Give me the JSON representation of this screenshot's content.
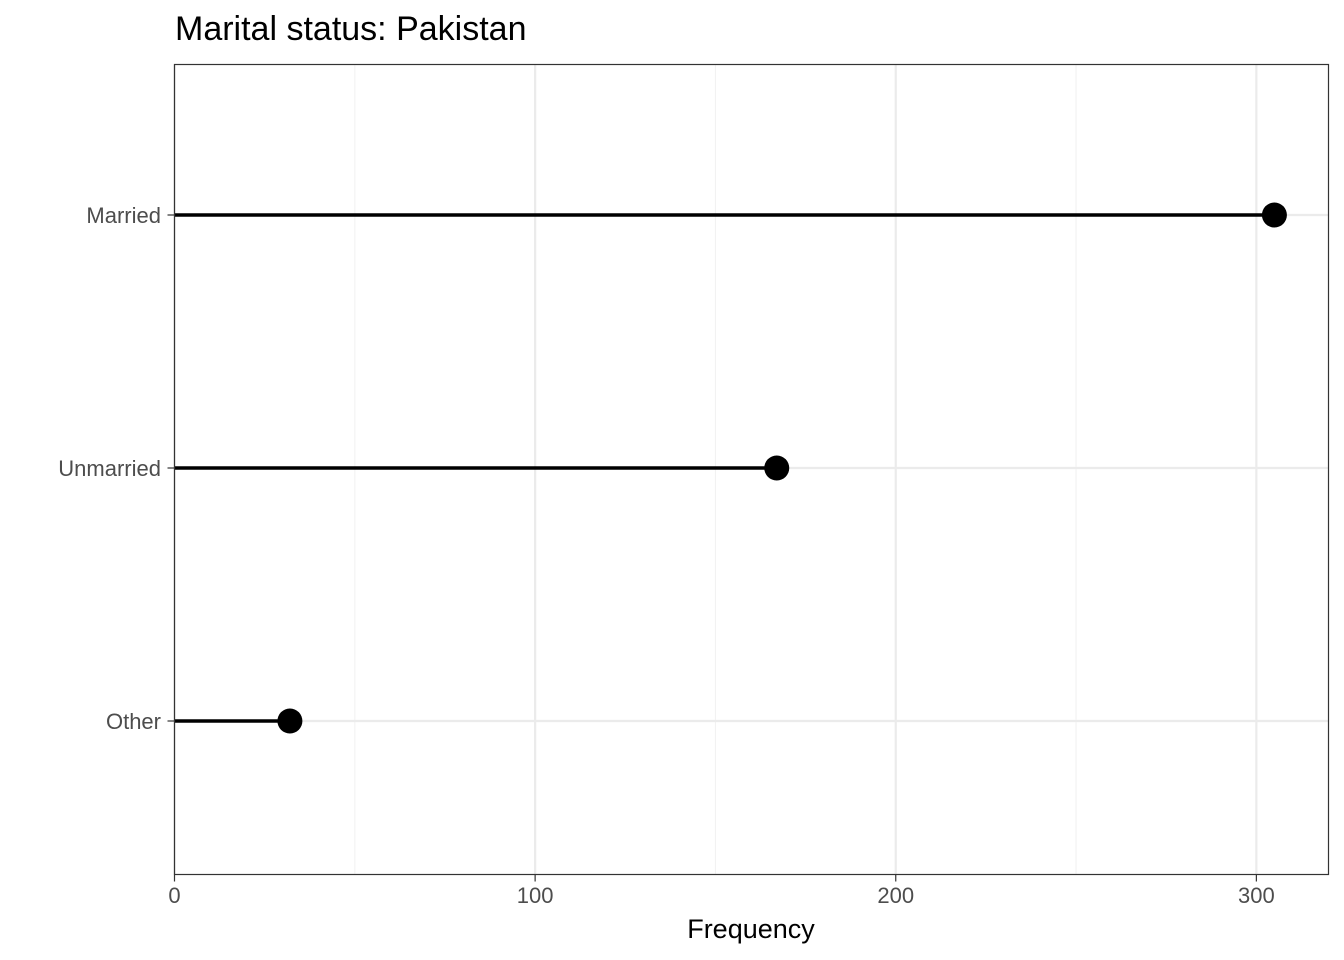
{
  "chart_data": {
    "type": "lollipop",
    "title": "Marital status: Pakistan",
    "xlabel": "Frequency",
    "ylabel": "",
    "xlim": [
      0,
      320
    ],
    "x_ticks": [
      0,
      100,
      200,
      300
    ],
    "x_tick_labels": [
      "0",
      "100",
      "200",
      "300"
    ],
    "categories": [
      "Married",
      "Unmarried",
      "Other"
    ],
    "values": [
      305,
      167,
      32
    ],
    "grid": true,
    "theme": "bw",
    "colors": {
      "stem": "#000000",
      "point": "#000000",
      "grid_major": "#ebebeb",
      "grid_minor": "#f2f2f2",
      "panel_border": "#333333",
      "tick_label": "#4d4d4d"
    }
  }
}
